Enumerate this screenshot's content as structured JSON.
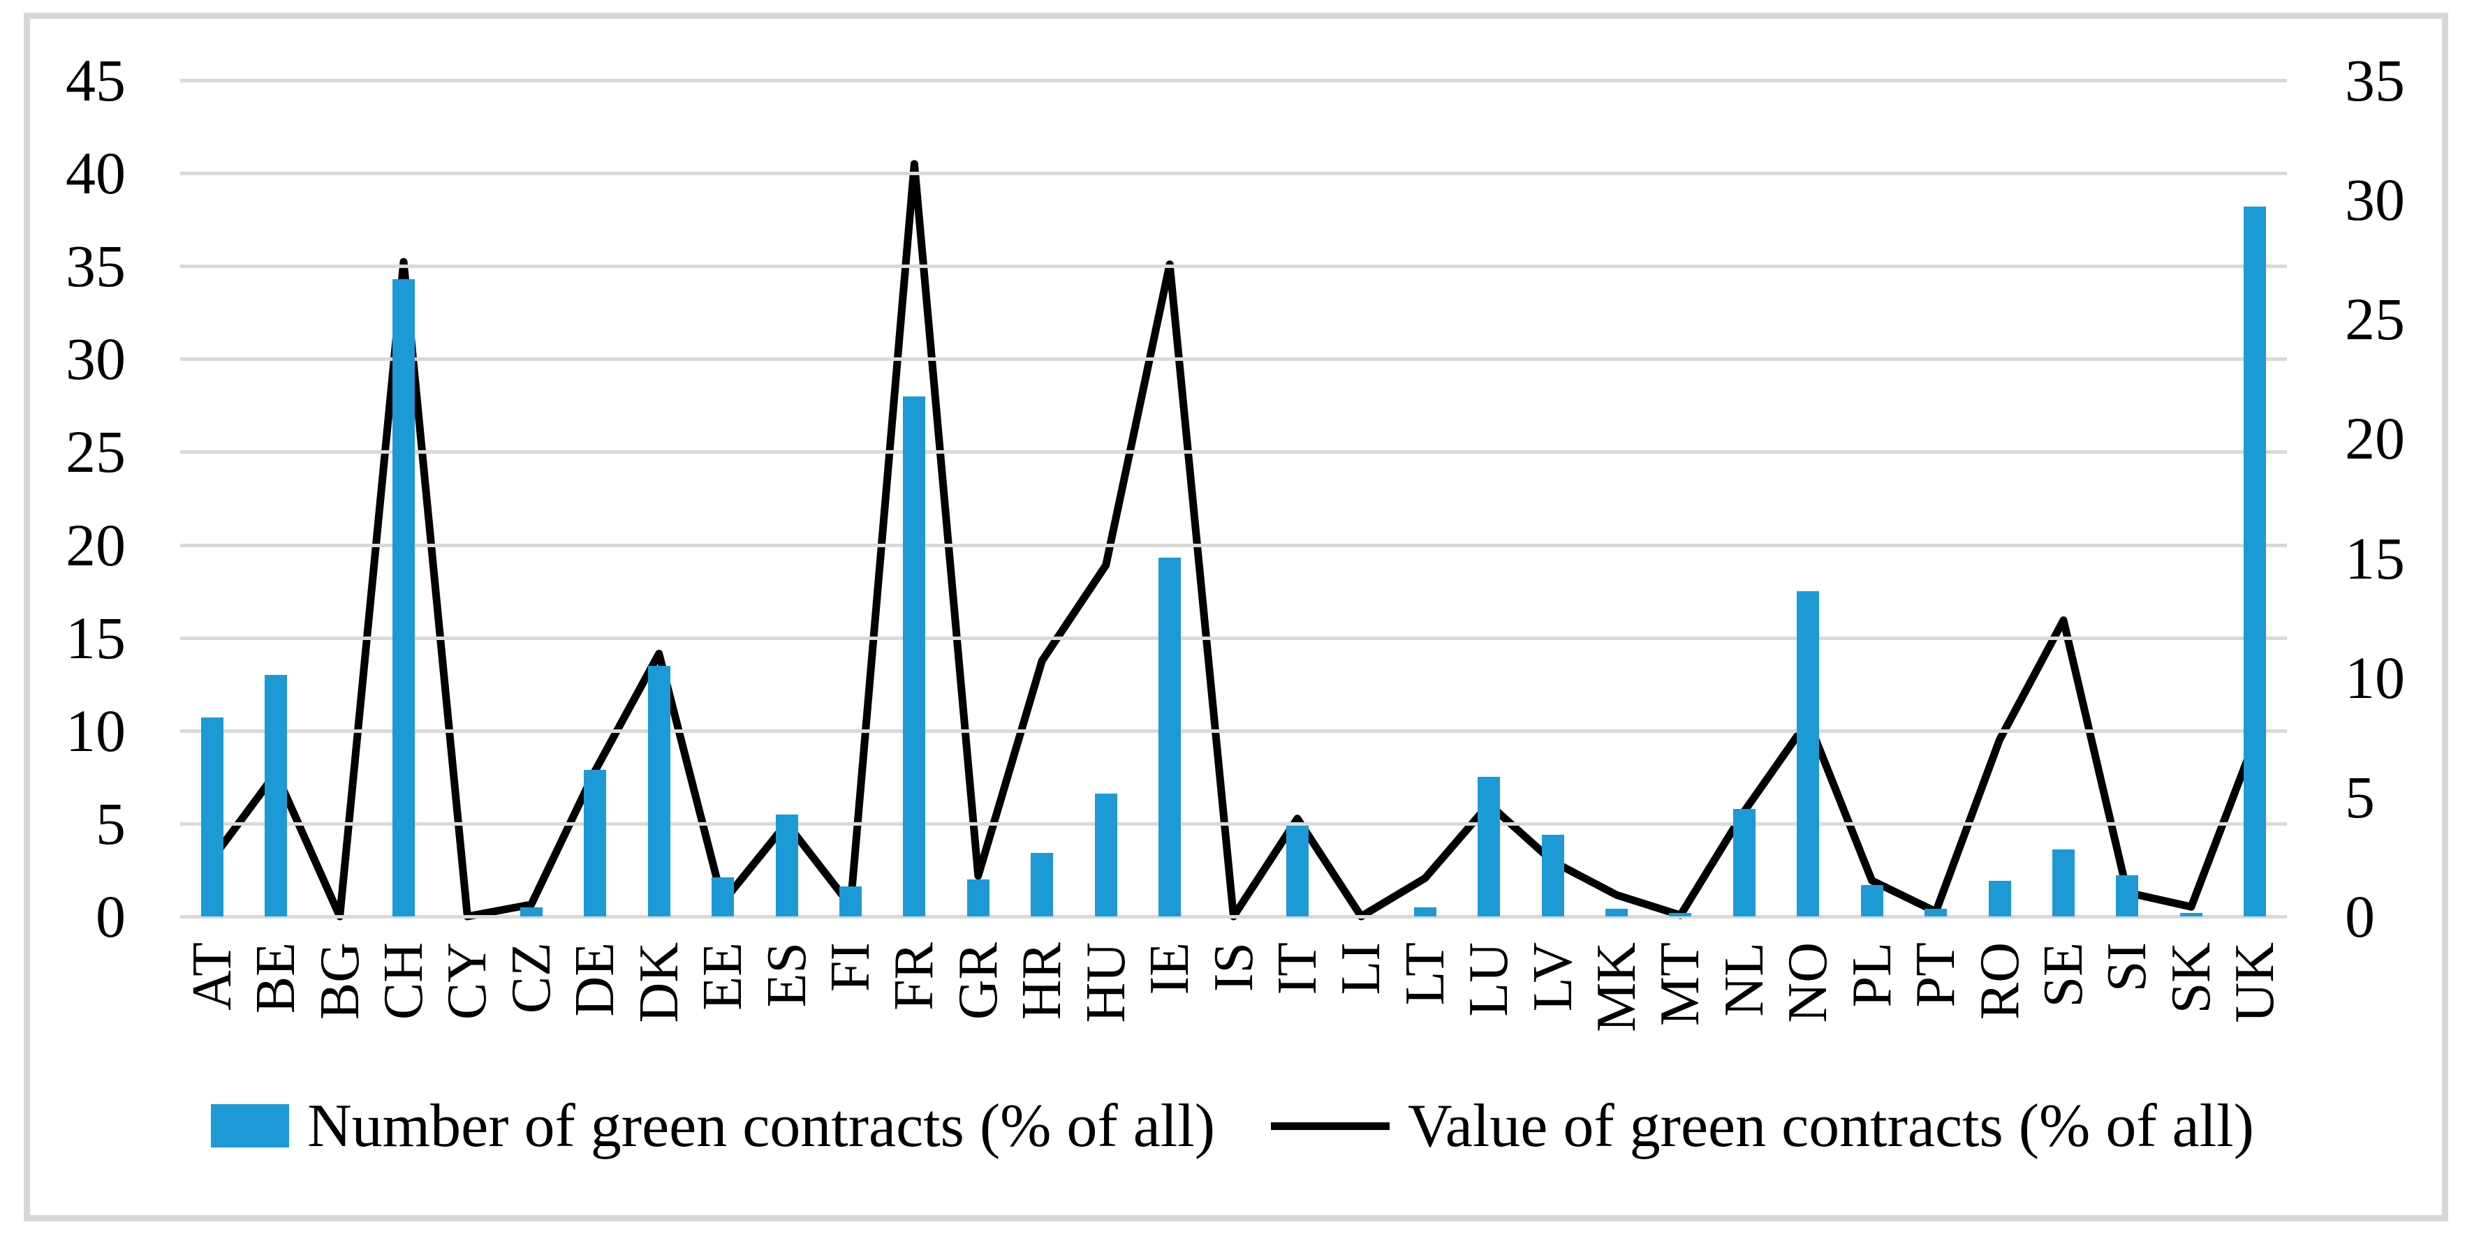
{
  "chart_data": {
    "type": "bar+line combo",
    "title": "",
    "categories": [
      "AT",
      "BE",
      "BG",
      "CH",
      "CY",
      "CZ",
      "DE",
      "DK",
      "EE",
      "ES",
      "FI",
      "FR",
      "GR",
      "HR",
      "HU",
      "IE",
      "IS",
      "IT",
      "LI",
      "LT",
      "LU",
      "LV",
      "MK",
      "MT",
      "NL",
      "NO",
      "PL",
      "PT",
      "RO",
      "SE",
      "SI",
      "SK",
      "UK"
    ],
    "series": [
      {
        "name": "Number of green contracts (% of all)",
        "type": "bar",
        "axis": "left",
        "color": "#1c9ad6",
        "values": [
          10.7,
          13.0,
          0,
          34.3,
          0,
          0.5,
          7.9,
          13.5,
          2.1,
          5.5,
          1.6,
          28.0,
          2.0,
          3.4,
          6.6,
          19.3,
          0,
          4.9,
          0,
          0.5,
          7.5,
          4.4,
          0.4,
          0.2,
          5.8,
          17.5,
          1.7,
          0.4,
          1.9,
          3.6,
          2.2,
          0.2,
          38.2
        ]
      },
      {
        "name": "Value of green contracts (% of all)",
        "type": "line",
        "axis": "right",
        "color": "#000000",
        "values": [
          2.4,
          6.0,
          0,
          27.4,
          0,
          0.5,
          6.1,
          11.0,
          0.6,
          3.9,
          0.45,
          31.5,
          1.7,
          10.7,
          14.7,
          27.3,
          0,
          4.1,
          0,
          1.6,
          4.7,
          2.3,
          0.9,
          0.05,
          4.4,
          8.2,
          1.5,
          0.2,
          7.4,
          12.4,
          1.0,
          0.4,
          7.4
        ]
      }
    ],
    "left_axis": {
      "min": 0,
      "max": 45,
      "step": 5,
      "ticks": [
        45,
        40,
        35,
        30,
        25,
        20,
        15,
        10,
        5,
        0
      ]
    },
    "right_axis": {
      "min": 0,
      "max": 35,
      "step": 5,
      "ticks": [
        35,
        30,
        25,
        20,
        15,
        10,
        5,
        0
      ]
    },
    "grid": true,
    "gridline_color": "#d9d9d9",
    "legend_position": "bottom"
  },
  "legend": {
    "bars_label": "Number of green contracts (% of all)",
    "line_label": "Value of green contracts (% of all)"
  }
}
